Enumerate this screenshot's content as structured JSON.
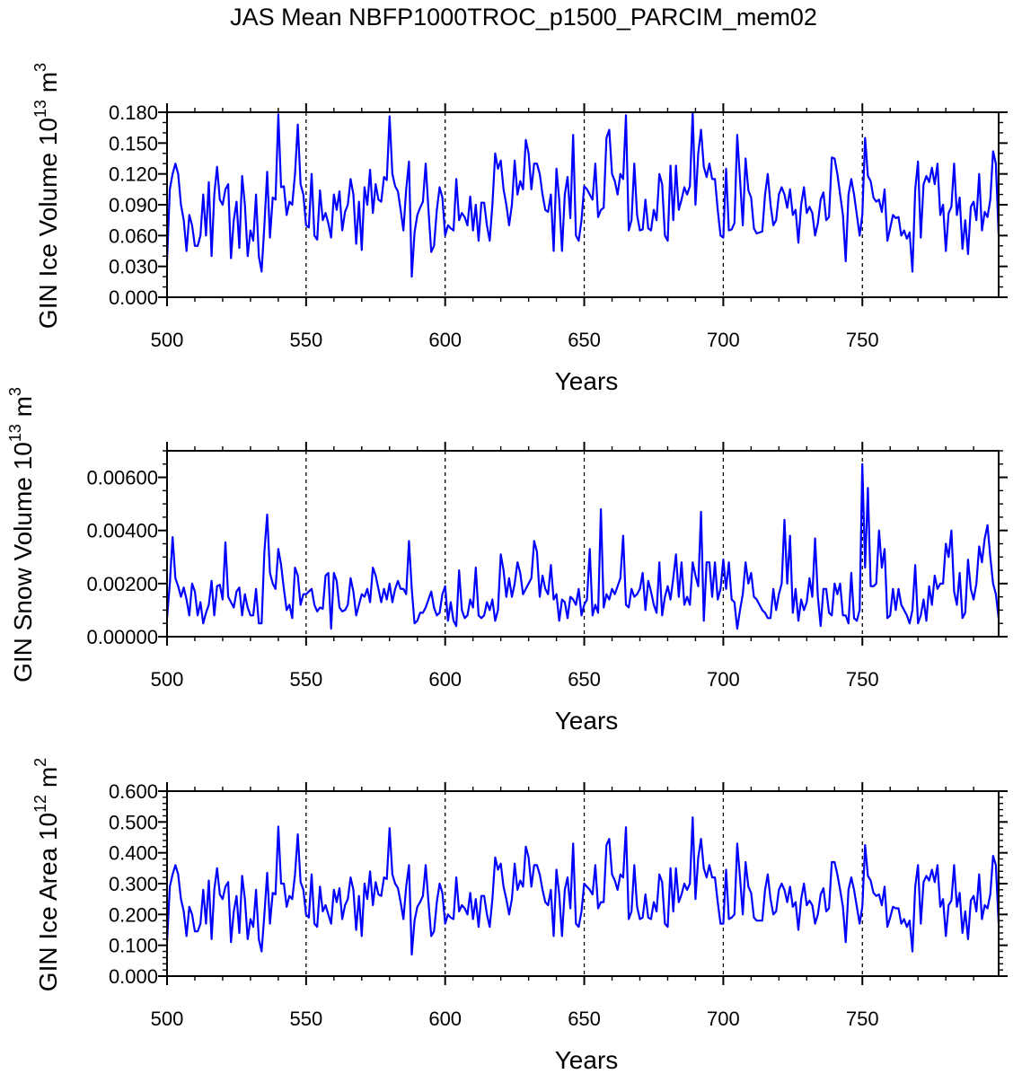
{
  "title": "JAS Mean NBFP1000TROC_p1500_PARCIM_mem02",
  "colors": {
    "line": "#0000ff",
    "axis": "#000000",
    "ref_lines": "#000000"
  },
  "chart_data": [
    {
      "type": "line",
      "xlabel": "Years",
      "ylabel": "GIN Ice Volume 10",
      "ylabel_exp": "13",
      "ylabel_unit": " m",
      "ylabel_unit_exp": "3",
      "xlim": [
        500,
        799
      ],
      "ylim": [
        0,
        0.18
      ],
      "x_ticks": [
        "500",
        "550",
        "600",
        "650",
        "700",
        "750"
      ],
      "y_ticks": [
        "0.000",
        "0.030",
        "0.060",
        "0.090",
        "0.120",
        "0.150",
        "0.180"
      ],
      "y_tick_values": [
        0,
        0.03,
        0.06,
        0.09,
        0.12,
        0.15,
        0.18
      ],
      "y_minor_step": 0.01,
      "ref_lines_x": [
        550,
        600,
        650,
        700,
        750
      ],
      "grid": false,
      "x_start": 500,
      "values": [
        0.035,
        0.105,
        0.12,
        0.13,
        0.12,
        0.09,
        0.075,
        0.045,
        0.08,
        0.07,
        0.05,
        0.05,
        0.06,
        0.1,
        0.06,
        0.112,
        0.04,
        0.1,
        0.127,
        0.095,
        0.09,
        0.105,
        0.11,
        0.038,
        0.075,
        0.093,
        0.048,
        0.118,
        0.09,
        0.04,
        0.065,
        0.055,
        0.1,
        0.04,
        0.025,
        0.07,
        0.122,
        0.058,
        0.097,
        0.095,
        0.178,
        0.107,
        0.108,
        0.08,
        0.093,
        0.09,
        0.12,
        0.168,
        0.11,
        0.1,
        0.07,
        0.068,
        0.12,
        0.06,
        0.056,
        0.104,
        0.075,
        0.082,
        0.072,
        0.058,
        0.1,
        0.085,
        0.103,
        0.065,
        0.083,
        0.09,
        0.115,
        0.1,
        0.052,
        0.093,
        0.046,
        0.107,
        0.09,
        0.124,
        0.082,
        0.11,
        0.095,
        0.093,
        0.117,
        0.114,
        0.176,
        0.12,
        0.108,
        0.103,
        0.085,
        0.065,
        0.105,
        0.132,
        0.02,
        0.063,
        0.08,
        0.087,
        0.093,
        0.13,
        0.085,
        0.044,
        0.05,
        0.085,
        0.107,
        0.097,
        0.06,
        0.07,
        0.067,
        0.065,
        0.115,
        0.075,
        0.082,
        0.078,
        0.07,
        0.098,
        0.065,
        0.09,
        0.055,
        0.092,
        0.092,
        0.07,
        0.055,
        0.09,
        0.14,
        0.125,
        0.133,
        0.105,
        0.09,
        0.07,
        0.09,
        0.133,
        0.1,
        0.113,
        0.105,
        0.153,
        0.14,
        0.105,
        0.13,
        0.13,
        0.12,
        0.1,
        0.085,
        0.083,
        0.1,
        0.045,
        0.125,
        0.095,
        0.045,
        0.1,
        0.117,
        0.077,
        0.158,
        0.06,
        0.055,
        0.075,
        0.108,
        0.105,
        0.1,
        0.095,
        0.13,
        0.078,
        0.085,
        0.087,
        0.155,
        0.163,
        0.12,
        0.113,
        0.1,
        0.12,
        0.115,
        0.177,
        0.065,
        0.075,
        0.13,
        0.08,
        0.065,
        0.066,
        0.095,
        0.067,
        0.065,
        0.085,
        0.075,
        0.12,
        0.11,
        0.06,
        0.055,
        0.128,
        0.075,
        0.128,
        0.085,
        0.095,
        0.107,
        0.1,
        0.108,
        0.18,
        0.09,
        0.14,
        0.163,
        0.127,
        0.117,
        0.13,
        0.115,
        0.115,
        0.085,
        0.06,
        0.058,
        0.125,
        0.065,
        0.066,
        0.072,
        0.158,
        0.115,
        0.07,
        0.135,
        0.104,
        0.097,
        0.067,
        0.062,
        0.063,
        0.064,
        0.1,
        0.12,
        0.09,
        0.07,
        0.075,
        0.1,
        0.107,
        0.1,
        0.087,
        0.105,
        0.08,
        0.085,
        0.053,
        0.09,
        0.107,
        0.082,
        0.088,
        0.082,
        0.06,
        0.072,
        0.095,
        0.102,
        0.075,
        0.078,
        0.136,
        0.135,
        0.12,
        0.1,
        0.08,
        0.035,
        0.1,
        0.115,
        0.1,
        0.08,
        0.06,
        0.08,
        0.155,
        0.118,
        0.113,
        0.097,
        0.093,
        0.095,
        0.083,
        0.105,
        0.055,
        0.067,
        0.08,
        0.077,
        0.078,
        0.06,
        0.065,
        0.057,
        0.063,
        0.025,
        0.105,
        0.132,
        0.058,
        0.11,
        0.118,
        0.112,
        0.126,
        0.11,
        0.13,
        0.08,
        0.09,
        0.045,
        0.082,
        0.088,
        0.13,
        0.08,
        0.097,
        0.047,
        0.075,
        0.042,
        0.088,
        0.093,
        0.075,
        0.12,
        0.065,
        0.083,
        0.078,
        0.095,
        0.142,
        0.13,
        0.06
      ]
    },
    {
      "type": "line",
      "xlabel": "Years",
      "ylabel": "GIN Snow Volume 10",
      "ylabel_exp": "13",
      "ylabel_unit": " m",
      "ylabel_unit_exp": "3",
      "xlim": [
        500,
        799
      ],
      "ylim": [
        0,
        0.007
      ],
      "x_ticks": [
        "500",
        "550",
        "600",
        "650",
        "700",
        "750"
      ],
      "y_ticks": [
        "0.00000",
        "0.00200",
        "0.00400",
        "0.00600"
      ],
      "y_tick_values": [
        0,
        0.002,
        0.004,
        0.006
      ],
      "y_minor_step": 0.0005,
      "ref_lines_x": [
        550,
        600,
        650,
        700,
        750
      ],
      "grid": false,
      "x_start": 500,
      "values": [
        0.0007,
        0.002,
        0.00375,
        0.0022,
        0.0019,
        0.0015,
        0.00185,
        0.0014,
        0.0008,
        0.002,
        0.0017,
        0.0008,
        0.0013,
        0.0005,
        0.0009,
        0.0012,
        0.0021,
        0.0008,
        0.0019,
        0.00195,
        0.0014,
        0.00355,
        0.0015,
        0.0013,
        0.0011,
        0.0017,
        0.00185,
        0.0008,
        0.0016,
        0.0011,
        0.0008,
        0.0008,
        0.0018,
        0.0005,
        0.0005,
        0.0032,
        0.0046,
        0.0024,
        0.002,
        0.0018,
        0.0033,
        0.0027,
        0.0018,
        0.001,
        0.0012,
        0.0007,
        0.0026,
        0.0023,
        0.0012,
        0.0016,
        0.0016,
        0.0017,
        0.0018,
        0.0012,
        0.00095,
        0.0011,
        0.00105,
        0.0023,
        0.0024,
        0.0003,
        0.0024,
        0.0021,
        0.0011,
        0.00095,
        0.001,
        0.0012,
        0.0022,
        0.0017,
        0.0008,
        0.0012,
        0.0016,
        0.0015,
        0.0018,
        0.0013,
        0.0026,
        0.0023,
        0.0018,
        0.0013,
        0.0018,
        0.0014,
        0.002,
        0.0013,
        0.0018,
        0.0021,
        0.0018,
        0.0018,
        0.0016,
        0.0036,
        0.0018,
        0.0005,
        0.0006,
        0.0009,
        0.0009,
        0.0011,
        0.0014,
        0.0017,
        0.0011,
        0.0008,
        0.0009,
        0.0016,
        0.0019,
        0.0006,
        0.0013,
        0.0006,
        0.0004,
        0.0025,
        0.001,
        0.0007,
        0.0008,
        0.0014,
        0.0011,
        0.0026,
        0.0008,
        0.0007,
        0.0008,
        0.0013,
        0.001,
        0.0014,
        0.0006,
        0.001,
        0.0031,
        0.0025,
        0.0015,
        0.0022,
        0.0015,
        0.002,
        0.0028,
        0.0024,
        0.0016,
        0.0018,
        0.002,
        0.0022,
        0.0036,
        0.0032,
        0.0015,
        0.0023,
        0.0018,
        0.0016,
        0.0027,
        0.0014,
        0.0016,
        0.0006,
        0.0014,
        0.0013,
        0.0007,
        0.0015,
        0.0014,
        0.0012,
        0.0018,
        0.0008,
        0.0012,
        0.0014,
        0.0033,
        0.0008,
        0.0012,
        0.0009,
        0.0048,
        0.0011,
        0.0016,
        0.0014,
        0.0018,
        0.0016,
        0.0019,
        0.0022,
        0.0038,
        0.0012,
        0.0011,
        0.0018,
        0.0015,
        0.0016,
        0.0018,
        0.0024,
        0.001,
        0.0021,
        0.0017,
        0.0012,
        0.0009,
        0.0028,
        0.0008,
        0.0015,
        0.0019,
        0.0014,
        0.0022,
        0.0031,
        0.0015,
        0.0028,
        0.0012,
        0.0015,
        0.0012,
        0.0028,
        0.0023,
        0.0019,
        0.0047,
        0.0006,
        0.0028,
        0.0028,
        0.0015,
        0.0028,
        0.0014,
        0.0018,
        0.0029,
        0.0018,
        0.0028,
        0.0014,
        0.0013,
        0.0003,
        0.001,
        0.0016,
        0.0028,
        0.002,
        0.0024,
        0.0015,
        0.0014,
        0.0012,
        0.001,
        0.0009,
        0.0007,
        0.0007,
        0.0018,
        0.001,
        0.0016,
        0.002,
        0.0044,
        0.002,
        0.0038,
        0.0009,
        0.0018,
        0.0006,
        0.0014,
        0.001,
        0.0013,
        0.0022,
        0.0015,
        0.0037,
        0.0015,
        0.0004,
        0.0018,
        0.0018,
        0.0009,
        0.0008,
        0.002,
        0.0016,
        0.002,
        0.0008,
        0.0008,
        0.0005,
        0.0024,
        0.0007,
        0.0006,
        0.001,
        0.0065,
        0.0026,
        0.0056,
        0.0019,
        0.0019,
        0.002,
        0.004,
        0.0026,
        0.0033,
        0.0007,
        0.0008,
        0.0018,
        0.001,
        0.0018,
        0.0012,
        0.001,
        0.0008,
        0.0005,
        0.001,
        0.0027,
        0.0005,
        0.0008,
        0.0014,
        0.0006,
        0.0019,
        0.0012,
        0.0023,
        0.0018,
        0.002,
        0.002,
        0.0035,
        0.003,
        0.004,
        0.0017,
        0.0012,
        0.0024,
        0.0007,
        0.0009,
        0.0029,
        0.0018,
        0.0014,
        0.002,
        0.0034,
        0.0028,
        0.0037,
        0.0042,
        0.003,
        0.002,
        0.0016,
        0.0007
      ]
    },
    {
      "type": "line",
      "xlabel": "Years",
      "ylabel": "GIN Ice Area 10",
      "ylabel_exp": "12",
      "ylabel_unit": " m",
      "ylabel_unit_exp": "2",
      "xlim": [
        500,
        799
      ],
      "ylim": [
        0,
        0.6
      ],
      "x_ticks": [
        "500",
        "550",
        "600",
        "650",
        "700",
        "750"
      ],
      "y_ticks": [
        "0.000",
        "0.100",
        "0.200",
        "0.300",
        "0.400",
        "0.500",
        "0.600"
      ],
      "y_tick_values": [
        0,
        0.1,
        0.2,
        0.3,
        0.4,
        0.5,
        0.6
      ],
      "y_minor_step": 0.02,
      "ref_lines_x": [
        550,
        600,
        650,
        700,
        750
      ],
      "grid": false,
      "x_start": 500,
      "values": [
        0.11,
        0.29,
        0.33,
        0.36,
        0.33,
        0.25,
        0.21,
        0.13,
        0.225,
        0.2,
        0.145,
        0.145,
        0.17,
        0.28,
        0.17,
        0.31,
        0.12,
        0.28,
        0.35,
        0.265,
        0.25,
        0.29,
        0.305,
        0.11,
        0.21,
        0.26,
        0.14,
        0.325,
        0.25,
        0.12,
        0.185,
        0.16,
        0.28,
        0.12,
        0.08,
        0.2,
        0.335,
        0.17,
        0.27,
        0.265,
        0.485,
        0.3,
        0.3,
        0.225,
        0.26,
        0.25,
        0.33,
        0.46,
        0.305,
        0.28,
        0.2,
        0.19,
        0.33,
        0.17,
        0.16,
        0.29,
        0.21,
        0.23,
        0.2,
        0.17,
        0.28,
        0.24,
        0.285,
        0.185,
        0.23,
        0.25,
        0.32,
        0.28,
        0.15,
        0.26,
        0.13,
        0.3,
        0.25,
        0.34,
        0.23,
        0.305,
        0.265,
        0.26,
        0.32,
        0.315,
        0.48,
        0.33,
        0.3,
        0.285,
        0.24,
        0.185,
        0.29,
        0.36,
        0.07,
        0.18,
        0.225,
        0.24,
        0.26,
        0.36,
        0.24,
        0.13,
        0.145,
        0.24,
        0.3,
        0.27,
        0.17,
        0.2,
        0.19,
        0.185,
        0.32,
        0.21,
        0.23,
        0.22,
        0.2,
        0.27,
        0.185,
        0.25,
        0.16,
        0.26,
        0.26,
        0.2,
        0.16,
        0.25,
        0.385,
        0.345,
        0.365,
        0.29,
        0.25,
        0.2,
        0.25,
        0.365,
        0.28,
        0.31,
        0.29,
        0.42,
        0.385,
        0.29,
        0.36,
        0.36,
        0.33,
        0.28,
        0.24,
        0.23,
        0.28,
        0.13,
        0.345,
        0.265,
        0.13,
        0.28,
        0.32,
        0.22,
        0.43,
        0.17,
        0.16,
        0.21,
        0.3,
        0.29,
        0.28,
        0.265,
        0.36,
        0.22,
        0.24,
        0.24,
        0.425,
        0.445,
        0.33,
        0.31,
        0.28,
        0.33,
        0.32,
        0.483,
        0.185,
        0.21,
        0.36,
        0.225,
        0.185,
        0.19,
        0.265,
        0.19,
        0.185,
        0.24,
        0.21,
        0.33,
        0.305,
        0.17,
        0.16,
        0.35,
        0.21,
        0.35,
        0.24,
        0.265,
        0.3,
        0.28,
        0.3,
        0.515,
        0.25,
        0.385,
        0.445,
        0.35,
        0.32,
        0.36,
        0.32,
        0.32,
        0.24,
        0.17,
        0.17,
        0.345,
        0.185,
        0.19,
        0.2,
        0.43,
        0.32,
        0.2,
        0.37,
        0.29,
        0.27,
        0.19,
        0.18,
        0.18,
        0.18,
        0.28,
        0.33,
        0.25,
        0.2,
        0.21,
        0.28,
        0.3,
        0.28,
        0.24,
        0.29,
        0.225,
        0.24,
        0.15,
        0.25,
        0.3,
        0.23,
        0.245,
        0.23,
        0.17,
        0.2,
        0.265,
        0.285,
        0.21,
        0.22,
        0.37,
        0.37,
        0.33,
        0.28,
        0.225,
        0.11,
        0.28,
        0.32,
        0.28,
        0.225,
        0.17,
        0.225,
        0.425,
        0.325,
        0.31,
        0.27,
        0.26,
        0.265,
        0.23,
        0.29,
        0.16,
        0.19,
        0.225,
        0.22,
        0.22,
        0.17,
        0.185,
        0.16,
        0.18,
        0.08,
        0.29,
        0.36,
        0.17,
        0.305,
        0.325,
        0.31,
        0.345,
        0.305,
        0.36,
        0.225,
        0.25,
        0.13,
        0.23,
        0.245,
        0.36,
        0.225,
        0.27,
        0.14,
        0.21,
        0.12,
        0.245,
        0.26,
        0.21,
        0.33,
        0.185,
        0.23,
        0.22,
        0.265,
        0.39,
        0.36,
        0.17
      ]
    }
  ]
}
